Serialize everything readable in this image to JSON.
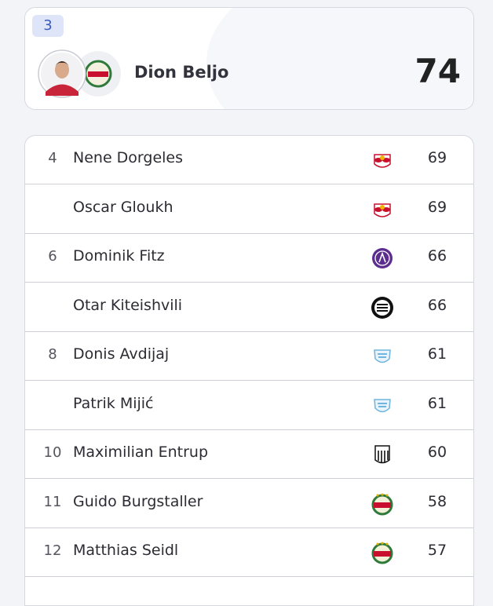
{
  "header": {
    "rank": "3",
    "name": "Dion Beljo",
    "value": "74"
  },
  "table": {
    "rows": [
      [
        "4",
        "Nene Dorgeles",
        "69"
      ],
      [
        null,
        "Oscar Gloukh",
        "69"
      ],
      [
        "6",
        "Dominik Fitz",
        "66"
      ],
      [
        null,
        "Otar Kiteishvili",
        "66"
      ],
      [
        "8",
        "Donis Avdijaj",
        "61"
      ],
      [
        null,
        "Patrik Mijić",
        "61"
      ],
      [
        "10",
        "Maximilian Entrup",
        "60"
      ],
      [
        "11",
        "Guido Burgstaller",
        "58"
      ],
      [
        "12",
        "Matthias Seidl",
        "57"
      ]
    ]
  }
}
